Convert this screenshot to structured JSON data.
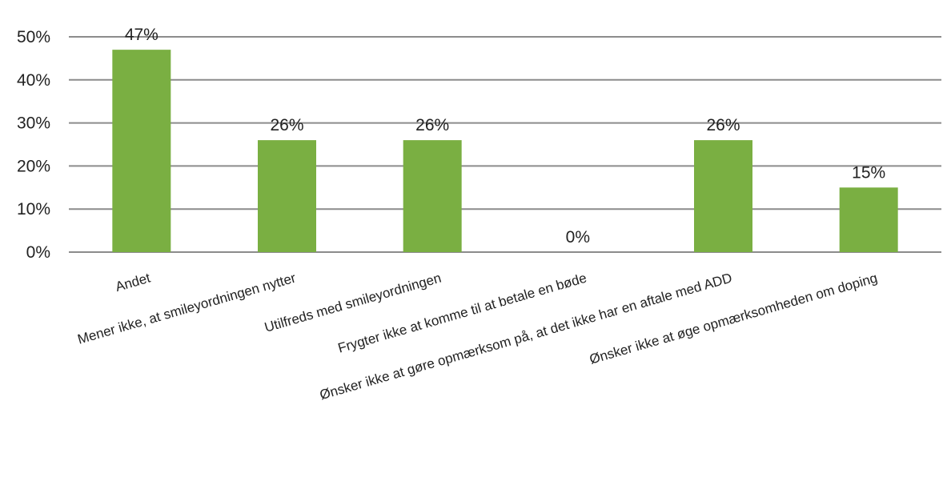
{
  "chart_data": {
    "type": "bar",
    "categories": [
      "Andet",
      "Mener ikke, at smileyordningen nytter",
      "Utilfreds med smileyordningen",
      "Frygter ikke at komme til at betale en bøde",
      "Ønsker ikke at gøre opmærksom på, at det ikke har en aftale med ADD",
      "Ønsker ikke at øge opmærksomheden om doping"
    ],
    "values": [
      47,
      26,
      26,
      0,
      26,
      15
    ],
    "value_labels": [
      "47%",
      "26%",
      "26%",
      "0%",
      "26%",
      "15%"
    ],
    "y_ticks": [
      0,
      10,
      20,
      30,
      40,
      50
    ],
    "y_tick_labels": [
      "0%",
      "10%",
      "20%",
      "30%",
      "40%",
      "50%"
    ],
    "ylim": [
      0,
      50
    ],
    "grid": true,
    "legend": "none",
    "title": "",
    "xlabel": "",
    "ylabel": "",
    "colors": {
      "bar": "#7aaf42",
      "grid": "#8c8c8c",
      "text": "#222222"
    }
  }
}
